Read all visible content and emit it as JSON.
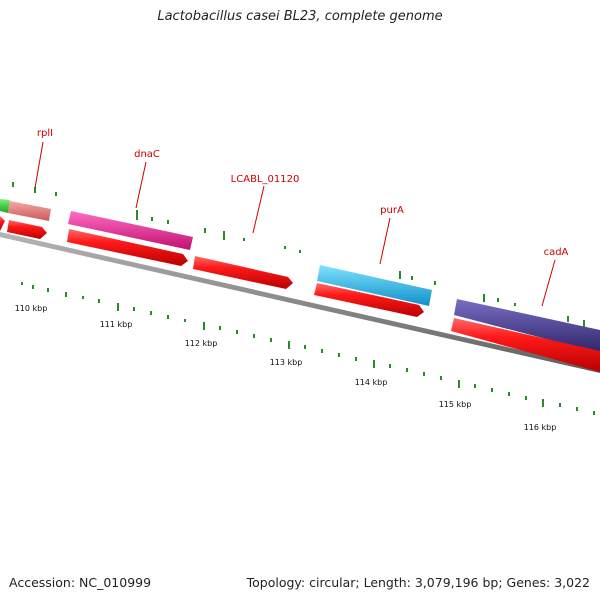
{
  "title": "Lactobacillus casei BL23, complete genome",
  "accession": "Accession: NC_010999",
  "summary": "Topology: circular; Length: 3,079,196 bp; Genes: 3,022",
  "gene_labels": [
    "rplI",
    "dnaC",
    "LCABL_01120",
    "purA",
    "cadA"
  ],
  "scale_labels": [
    "110 kbp",
    "111 kbp",
    "112 kbp",
    "113 kbp",
    "114 kbp",
    "115 kbp",
    "116 kbp"
  ],
  "colors": {
    "cds": "#ee1111",
    "backbone": "#808080",
    "skew_ticks": "#2a8a2a",
    "rplI": "#e88080",
    "dnaC": "#ee2299",
    "purA": "#22bbee",
    "cadA": "#4a3d8f",
    "green_gene": "#33cc33",
    "label": "#cc0000"
  }
}
